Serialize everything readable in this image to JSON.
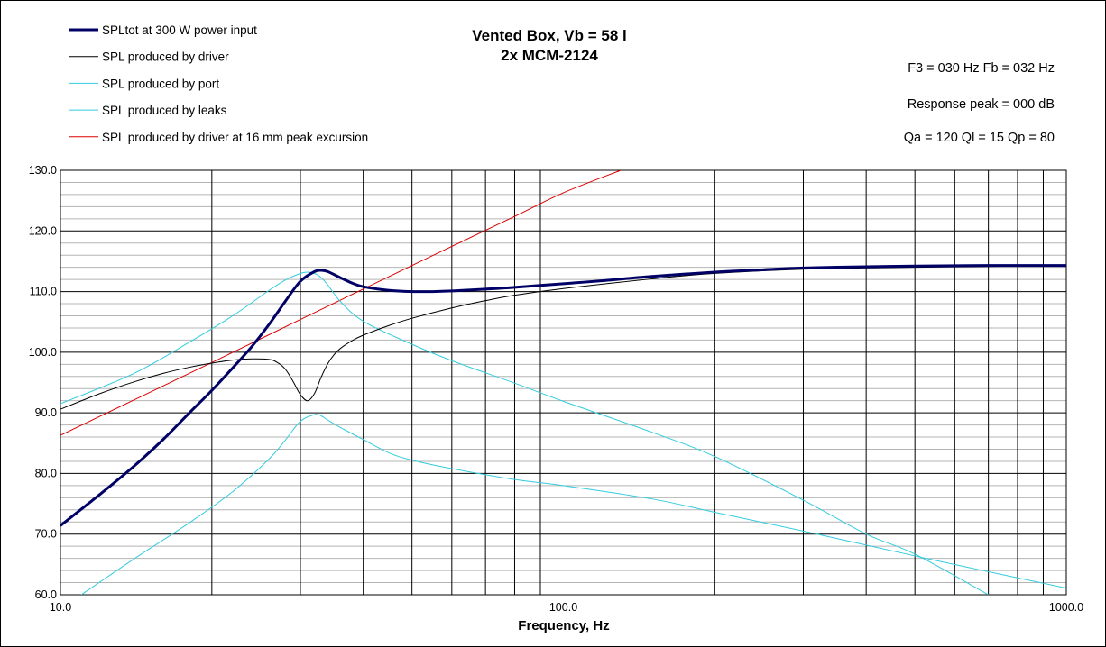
{
  "chart_data": {
    "type": "line",
    "title": "Vented Box, Vb = 58 l",
    "subtitle": "2x MCM-2124",
    "xlabel": "Frequency, Hz",
    "ylabel": "",
    "x_scale": "log",
    "xlim": [
      10,
      1000
    ],
    "ylim": [
      60,
      130
    ],
    "x_tick_labels": [
      "10.0",
      "100.0",
      "1000.0"
    ],
    "x_ticks": [
      10,
      100,
      1000
    ],
    "y_tick_labels": [
      "60.0",
      "70.0",
      "80.0",
      "90.0",
      "100.0",
      "110.0",
      "120.0",
      "130.0"
    ],
    "y_ticks": [
      60,
      70,
      80,
      90,
      100,
      110,
      120,
      130
    ],
    "grid": true,
    "legend_position": "top-left",
    "annotations": [
      "F3 = 030 Hz  Fb = 032 Hz",
      "Response peak = 000 dB",
      "Qa = 120  Ql = 15  Qp = 80"
    ],
    "series": [
      {
        "name": "SPLtot at 300  W power input",
        "color": "#000066",
        "x": [
          10,
          12,
          14,
          16,
          18,
          20,
          22,
          24,
          26,
          28,
          30,
          32,
          33,
          34,
          36,
          38,
          40,
          45,
          50,
          55,
          60,
          70,
          80,
          100,
          120,
          150,
          200,
          250,
          300,
          400,
          500,
          700,
          1000
        ],
        "y": [
          71.4,
          76.6,
          81.2,
          85.6,
          89.9,
          93.7,
          97.4,
          100.9,
          104.6,
          108.4,
          111.7,
          113.3,
          113.5,
          113.3,
          112.3,
          111.4,
          110.8,
          110.2,
          110.0,
          110.0,
          110.1,
          110.4,
          110.7,
          111.3,
          111.8,
          112.5,
          113.2,
          113.6,
          113.9,
          114.1,
          114.2,
          114.3,
          114.3
        ]
      },
      {
        "name": "SPL produced  by driver",
        "color": "#000000",
        "x": [
          10,
          12,
          14,
          16,
          18,
          20,
          22,
          24,
          26,
          27,
          28,
          29,
          30,
          31,
          32,
          33,
          34,
          35,
          36,
          38,
          40,
          45,
          50,
          60,
          70,
          80,
          100,
          150,
          200,
          300,
          500,
          1000
        ],
        "y": [
          90.6,
          93.2,
          95.1,
          96.5,
          97.5,
          98.2,
          98.7,
          98.9,
          98.8,
          98.3,
          97.2,
          95.2,
          93.0,
          92.0,
          93.2,
          95.9,
          98.1,
          99.6,
          100.6,
          101.9,
          102.8,
          104.4,
          105.6,
          107.3,
          108.5,
          109.4,
          110.5,
          112.1,
          113.0,
          113.7,
          114.0,
          114.3
        ]
      },
      {
        "name": "SPL produced  by port",
        "color": "#33CCDD",
        "x": [
          10,
          14,
          18,
          22,
          26,
          28,
          30,
          31,
          32,
          33,
          34,
          36,
          40,
          50,
          60,
          80,
          100,
          150,
          200,
          300,
          400,
          500,
          700
        ],
        "y": [
          91.5,
          96.5,
          101.6,
          106.0,
          110.2,
          111.9,
          113.0,
          113.2,
          113.0,
          112.3,
          111.1,
          108.4,
          105.1,
          101.3,
          98.6,
          94.9,
          91.9,
          86.8,
          82.8,
          75.6,
          70.0,
          66.7,
          60.0
        ]
      },
      {
        "name": "SPL produced  by leaks",
        "color": "#33CCDD",
        "x": [
          11,
          14,
          18,
          22,
          26,
          28,
          30,
          32,
          33,
          34,
          36,
          40,
          45,
          50,
          60,
          80,
          100,
          150,
          200,
          300,
          500,
          700,
          1000
        ],
        "y": [
          60.0,
          65.9,
          71.8,
          77.0,
          82.4,
          85.5,
          88.6,
          89.7,
          89.5,
          88.8,
          87.6,
          85.6,
          83.4,
          82.2,
          80.8,
          79.0,
          78.0,
          75.8,
          73.6,
          70.5,
          66.4,
          63.8,
          61.1
        ]
      },
      {
        "name": "SPL produced  by driver at 16 mm peak excursion",
        "color": "#DD0000",
        "x": [
          10,
          20,
          30,
          50,
          80,
          100,
          130
        ],
        "y": [
          86.3,
          98.3,
          105.4,
          114.3,
          122.4,
          126.3,
          130.0
        ]
      }
    ]
  }
}
